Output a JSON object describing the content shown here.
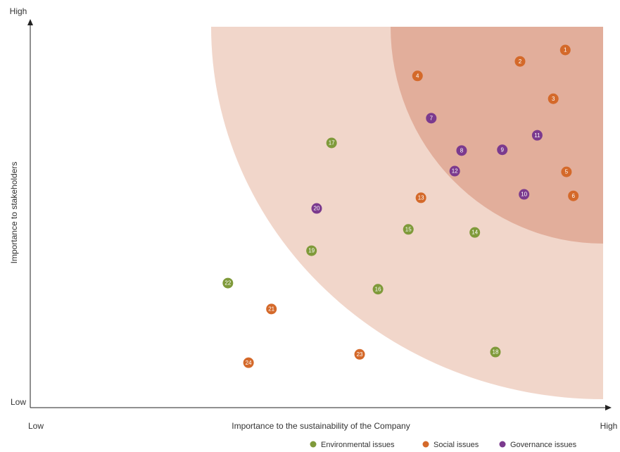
{
  "chart_data": {
    "type": "scatter",
    "x_label": "Importance to the sustainability of the Company",
    "y_label": "Importance to stakeholders",
    "xlim": [
      0,
      100
    ],
    "ylim": [
      0,
      100
    ],
    "xticks": [
      {
        "value": 0,
        "label": "Low"
      },
      {
        "value": 100,
        "label": "High"
      }
    ],
    "yticks": [
      {
        "value": 0,
        "label": "Low"
      },
      {
        "value": 100,
        "label": "High"
      }
    ],
    "legend": "bottom-right",
    "series": [
      {
        "name": "Environmental issues",
        "color": "#7f9a3a",
        "point_labels": [
          "14",
          "15",
          "16",
          "17",
          "18",
          "19",
          "22"
        ],
        "x": [
          77.6,
          66.0,
          60.7,
          52.6,
          81.2,
          49.1,
          34.5
        ],
        "values": [
          46.0,
          46.8,
          31.1,
          69.5,
          14.6,
          41.2,
          32.7
        ]
      },
      {
        "name": "Social issues",
        "color": "#d4692a",
        "point_labels": [
          "1",
          "2",
          "3",
          "4",
          "5",
          "6",
          "13",
          "21",
          "23",
          "24"
        ],
        "x": [
          93.4,
          85.5,
          91.3,
          67.6,
          93.6,
          94.8,
          68.2,
          42.1,
          57.5,
          38.1
        ],
        "values": [
          93.9,
          90.9,
          81.1,
          87.1,
          61.9,
          55.6,
          55.1,
          25.9,
          14.0,
          11.8
        ]
      },
      {
        "name": "Governance issues",
        "color": "#7b3a8e",
        "point_labels": [
          "7",
          "8",
          "9",
          "10",
          "11",
          "12",
          "20"
        ],
        "x": [
          70.0,
          75.3,
          82.4,
          86.2,
          88.5,
          74.1,
          50.0
        ],
        "values": [
          76.0,
          67.5,
          67.7,
          56.0,
          71.5,
          62.1,
          52.3
        ]
      }
    ]
  }
}
